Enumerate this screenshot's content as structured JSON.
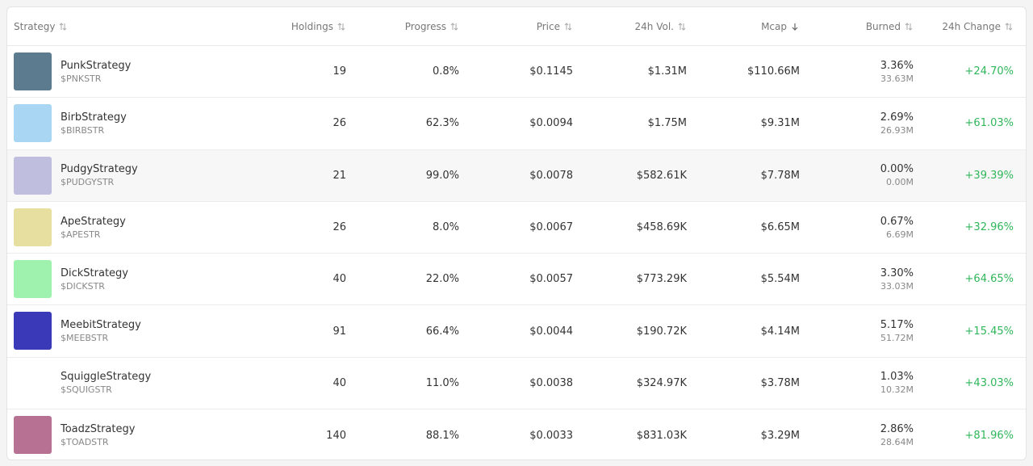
{
  "header": {
    "columns": [
      "Strategy",
      "Holdings",
      "Progress",
      "Price",
      "24h Vol.",
      "Mcap",
      "Burned",
      "24h Change"
    ]
  },
  "table": {
    "rows": [
      {
        "name": "PunkStrategy",
        "ticker": "$PNKSTR",
        "holdings": "19",
        "progress": "0.8%",
        "price": "$0.1145",
        "volume": "$1.31M",
        "mcap": "$110.66M",
        "burned_pct": "3.36%",
        "burned_amount": "33.63M",
        "change": "+24.70%"
      },
      {
        "name": "BirbStrategy",
        "ticker": "$BIRBSTR",
        "holdings": "26",
        "progress": "62.3%",
        "price": "$0.0094",
        "volume": "$1.75M",
        "mcap": "$9.31M",
        "burned_pct": "2.69%",
        "burned_amount": "26.93M",
        "change": "+61.03%"
      },
      {
        "name": "PudgyStrategy",
        "ticker": "$PUDGYSTR",
        "holdings": "21",
        "progress": "99.0%",
        "price": "$0.0078",
        "volume": "$582.61K",
        "mcap": "$7.78M",
        "burned_pct": "0.00%",
        "burned_amount": "0.00M",
        "change": "+39.39%"
      },
      {
        "name": "ApeStrategy",
        "ticker": "$APESTR",
        "holdings": "26",
        "progress": "8.0%",
        "price": "$0.0067",
        "volume": "$458.69K",
        "mcap": "$6.65M",
        "burned_pct": "0.67%",
        "burned_amount": "6.69M",
        "change": "+32.96%"
      },
      {
        "name": "DickStrategy",
        "ticker": "$DICKSTR",
        "holdings": "40",
        "progress": "22.0%",
        "price": "$0.0057",
        "volume": "$773.29K",
        "mcap": "$5.54M",
        "burned_pct": "3.30%",
        "burned_amount": "33.03M",
        "change": "+64.65%"
      },
      {
        "name": "MeebitStrategy",
        "ticker": "$MEEBSTR",
        "holdings": "91",
        "progress": "66.4%",
        "price": "$0.0044",
        "volume": "$190.72K",
        "mcap": "$4.14M",
        "burned_pct": "5.17%",
        "burned_amount": "51.72M",
        "change": "+15.45%"
      },
      {
        "name": "SquiggleStrategy",
        "ticker": "$SQUIGSTR",
        "holdings": "40",
        "progress": "11.0%",
        "price": "$0.0038",
        "volume": "$324.97K",
        "mcap": "$3.78M",
        "burned_pct": "1.03%",
        "burned_amount": "10.32M",
        "change": "+43.03%"
      },
      {
        "name": "ToadzStrategy",
        "ticker": "$TOADSTR",
        "holdings": "140",
        "progress": "88.1%",
        "price": "$0.0033",
        "volume": "$831.03K",
        "mcap": "$3.29M",
        "burned_pct": "2.86%",
        "burned_amount": "28.64M",
        "change": "+81.96%"
      }
    ]
  }
}
